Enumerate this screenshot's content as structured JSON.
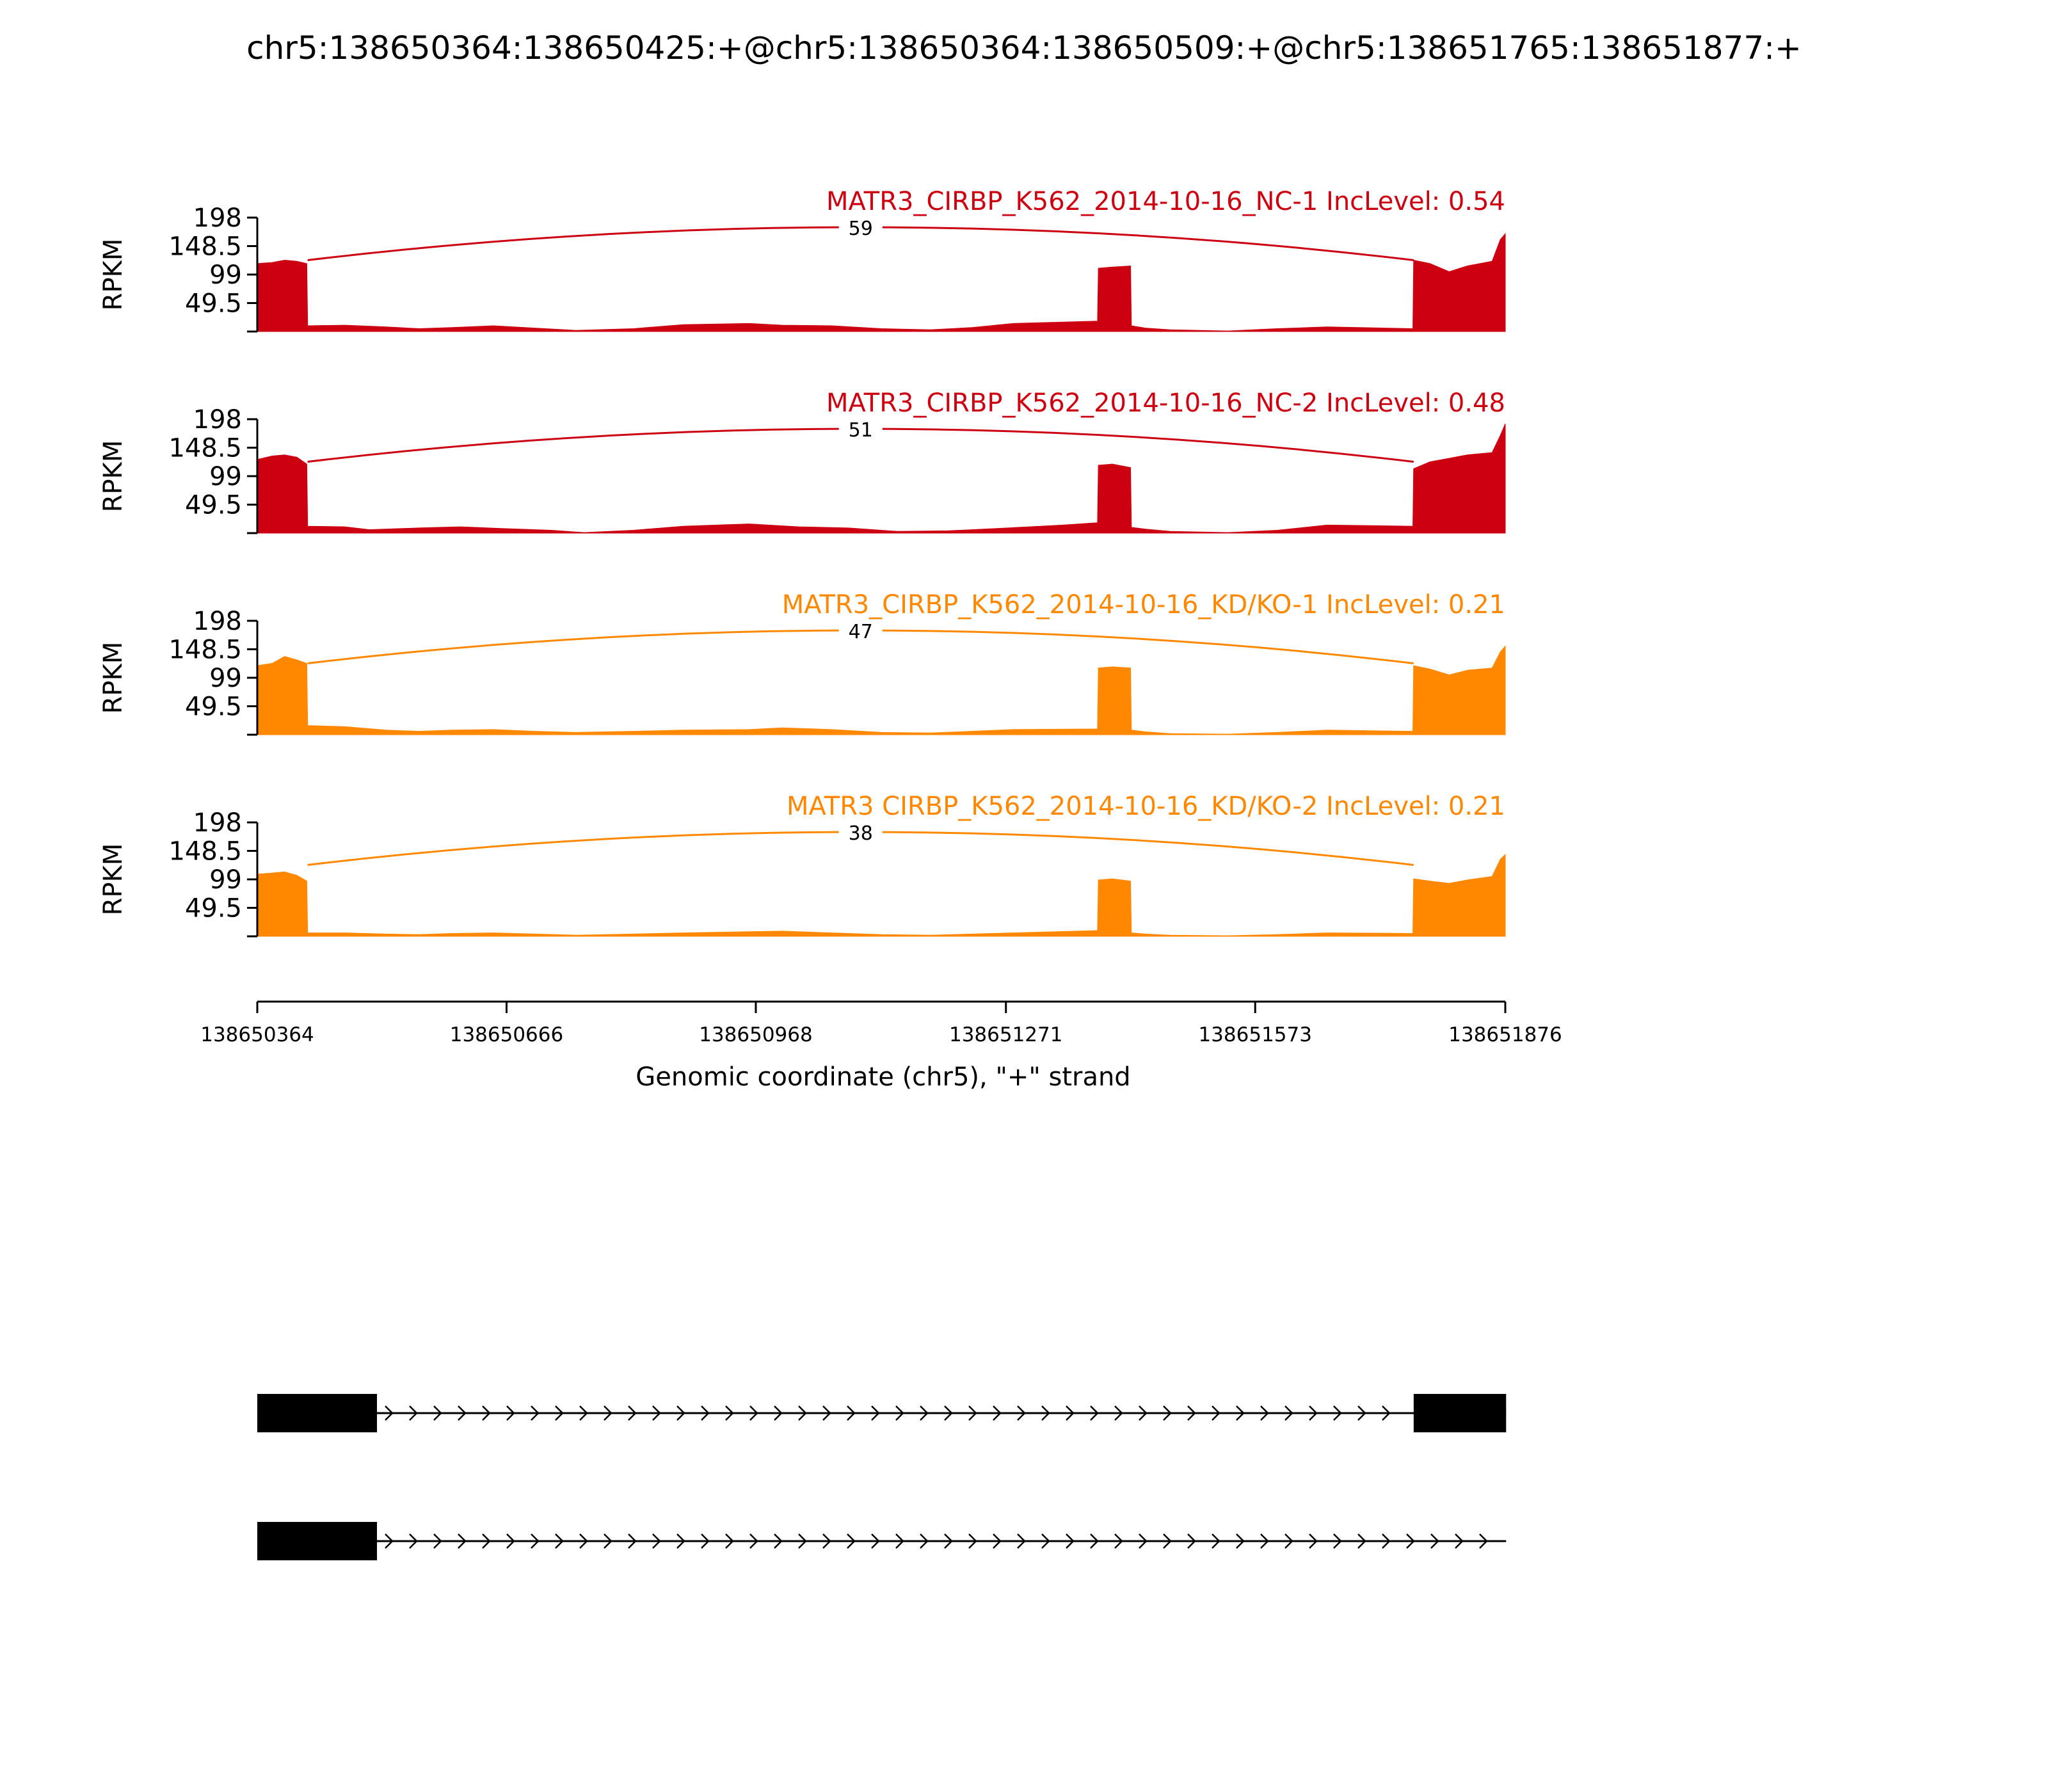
{
  "figure": {
    "title": "chr5:138650364:138650425:+@chr5:138650364:138650509:+@chr5:138651765:138651877:+",
    "xlabel": "Genomic coordinate (chr5), \"+\" strand",
    "ylabel": "RPKM"
  },
  "chart_data": {
    "type": "area",
    "title": "chr5:138650364:138650425:+@chr5:138650364:138650509:+@chr5:138651765:138651877:+",
    "xlabel": "Genomic coordinate (chr5), \"+\" strand",
    "ylabel": "RPKM",
    "xlim": [
      138650364,
      138651876
    ],
    "x_ticks": [
      "138650364",
      "138650666",
      "138650968",
      "138651271",
      "138651573",
      "138651876"
    ],
    "ylim": [
      0,
      198
    ],
    "y_ticks": [
      "198",
      "148.5",
      "99",
      "49.5"
    ],
    "grid": false,
    "series": [
      {
        "name": "MATR3_CIRBP_K562_2014-10-16_NC-1 IncLevel: 0.54",
        "color": "#CC0011",
        "junction_count": "59",
        "profile": [
          [
            138650364,
            118
          ],
          [
            138650382,
            120
          ],
          [
            138650397,
            124
          ],
          [
            138650412,
            122
          ],
          [
            138650424,
            118
          ],
          [
            138650425,
            10
          ],
          [
            138650470,
            11
          ],
          [
            138650520,
            8
          ],
          [
            138650560,
            5
          ],
          [
            138650600,
            7
          ],
          [
            138650650,
            10
          ],
          [
            138650700,
            6
          ],
          [
            138650750,
            2
          ],
          [
            138650820,
            5
          ],
          [
            138650880,
            12
          ],
          [
            138650960,
            14
          ],
          [
            138651000,
            11
          ],
          [
            138651060,
            10
          ],
          [
            138651120,
            5
          ],
          [
            138651180,
            3
          ],
          [
            138651230,
            7
          ],
          [
            138651280,
            14
          ],
          [
            138651382,
            18
          ],
          [
            138651383,
            110
          ],
          [
            138651400,
            112
          ],
          [
            138651422,
            114
          ],
          [
            138651423,
            10
          ],
          [
            138651440,
            6
          ],
          [
            138651470,
            3
          ],
          [
            138651540,
            1
          ],
          [
            138651600,
            5
          ],
          [
            138651660,
            8
          ],
          [
            138651764,
            5
          ],
          [
            138651765,
            124
          ],
          [
            138651785,
            118
          ],
          [
            138651808,
            104
          ],
          [
            138651830,
            114
          ],
          [
            138651860,
            122
          ],
          [
            138651870,
            160
          ],
          [
            138651876,
            170
          ]
        ]
      },
      {
        "name": "MATR3_CIRBP_K562_2014-10-16_NC-2 IncLevel: 0.48",
        "color": "#CC0011",
        "junction_count": "51",
        "profile": [
          [
            138650364,
            128
          ],
          [
            138650382,
            134
          ],
          [
            138650397,
            136
          ],
          [
            138650412,
            132
          ],
          [
            138650424,
            120
          ],
          [
            138650425,
            12
          ],
          [
            138650470,
            11
          ],
          [
            138650500,
            6
          ],
          [
            138650560,
            9
          ],
          [
            138650610,
            11
          ],
          [
            138650660,
            8
          ],
          [
            138650720,
            5
          ],
          [
            138650760,
            1
          ],
          [
            138650820,
            5
          ],
          [
            138650880,
            12
          ],
          [
            138650960,
            16
          ],
          [
            138651020,
            11
          ],
          [
            138651080,
            9
          ],
          [
            138651140,
            3
          ],
          [
            138651200,
            4
          ],
          [
            138651260,
            8
          ],
          [
            138651340,
            14
          ],
          [
            138651382,
            18
          ],
          [
            138651383,
            118
          ],
          [
            138651400,
            120
          ],
          [
            138651422,
            114
          ],
          [
            138651423,
            10
          ],
          [
            138651440,
            7
          ],
          [
            138651470,
            3
          ],
          [
            138651540,
            1
          ],
          [
            138651600,
            5
          ],
          [
            138651660,
            14
          ],
          [
            138651764,
            12
          ],
          [
            138651765,
            112
          ],
          [
            138651785,
            124
          ],
          [
            138651808,
            130
          ],
          [
            138651830,
            136
          ],
          [
            138651860,
            140
          ],
          [
            138651870,
            170
          ],
          [
            138651876,
            190
          ]
        ]
      },
      {
        "name": "MATR3_CIRBP_K562_2014-10-16_KD/KO-1 IncLevel: 0.21",
        "color": "#FF8800",
        "junction_count": "47",
        "profile": [
          [
            138650364,
            120
          ],
          [
            138650382,
            124
          ],
          [
            138650397,
            136
          ],
          [
            138650412,
            130
          ],
          [
            138650424,
            124
          ],
          [
            138650425,
            16
          ],
          [
            138650470,
            14
          ],
          [
            138650520,
            8
          ],
          [
            138650560,
            6
          ],
          [
            138650600,
            8
          ],
          [
            138650650,
            9
          ],
          [
            138650700,
            6
          ],
          [
            138650750,
            4
          ],
          [
            138650820,
            6
          ],
          [
            138650880,
            8
          ],
          [
            138650960,
            9
          ],
          [
            138651000,
            12
          ],
          [
            138651060,
            9
          ],
          [
            138651120,
            4
          ],
          [
            138651180,
            3
          ],
          [
            138651230,
            6
          ],
          [
            138651280,
            9
          ],
          [
            138651382,
            10
          ],
          [
            138651383,
            116
          ],
          [
            138651400,
            118
          ],
          [
            138651422,
            116
          ],
          [
            138651423,
            8
          ],
          [
            138651440,
            5
          ],
          [
            138651470,
            2
          ],
          [
            138651540,
            1
          ],
          [
            138651600,
            4
          ],
          [
            138651660,
            8
          ],
          [
            138651764,
            6
          ],
          [
            138651765,
            120
          ],
          [
            138651785,
            114
          ],
          [
            138651808,
            104
          ],
          [
            138651830,
            112
          ],
          [
            138651860,
            116
          ],
          [
            138651870,
            144
          ],
          [
            138651876,
            154
          ]
        ]
      },
      {
        "name": "MATR3 CIRBP_K562_2014-10-16_KD/KO-2 IncLevel: 0.21",
        "color": "#FF8800",
        "junction_count": "38",
        "profile": [
          [
            138650364,
            108
          ],
          [
            138650382,
            110
          ],
          [
            138650397,
            112
          ],
          [
            138650412,
            106
          ],
          [
            138650424,
            96
          ],
          [
            138650425,
            6
          ],
          [
            138650470,
            6
          ],
          [
            138650520,
            4
          ],
          [
            138650560,
            3
          ],
          [
            138650600,
            5
          ],
          [
            138650650,
            6
          ],
          [
            138650700,
            4
          ],
          [
            138650750,
            2
          ],
          [
            138650820,
            4
          ],
          [
            138650880,
            6
          ],
          [
            138650960,
            8
          ],
          [
            138651000,
            9
          ],
          [
            138651060,
            6
          ],
          [
            138651120,
            3
          ],
          [
            138651180,
            2
          ],
          [
            138651230,
            4
          ],
          [
            138651280,
            6
          ],
          [
            138651382,
            10
          ],
          [
            138651383,
            98
          ],
          [
            138651400,
            100
          ],
          [
            138651422,
            96
          ],
          [
            138651423,
            6
          ],
          [
            138651440,
            4
          ],
          [
            138651470,
            2
          ],
          [
            138651540,
            1
          ],
          [
            138651600,
            3
          ],
          [
            138651660,
            6
          ],
          [
            138651764,
            5
          ],
          [
            138651765,
            100
          ],
          [
            138651785,
            96
          ],
          [
            138651808,
            92
          ],
          [
            138651830,
            98
          ],
          [
            138651860,
            104
          ],
          [
            138651870,
            134
          ],
          [
            138651876,
            142
          ]
        ]
      }
    ],
    "junction": {
      "from": 138650425,
      "to": 138651765
    },
    "transcripts": [
      {
        "exons": [
          [
            138650364,
            138650425
          ],
          [
            138650364,
            138650509
          ],
          [
            138651765,
            138651877
          ]
        ],
        "line_end": 138651877
      },
      {
        "exons": [
          [
            138650364,
            138650425
          ],
          [
            138650364,
            138650509
          ]
        ],
        "line_end": 138651877
      }
    ]
  }
}
